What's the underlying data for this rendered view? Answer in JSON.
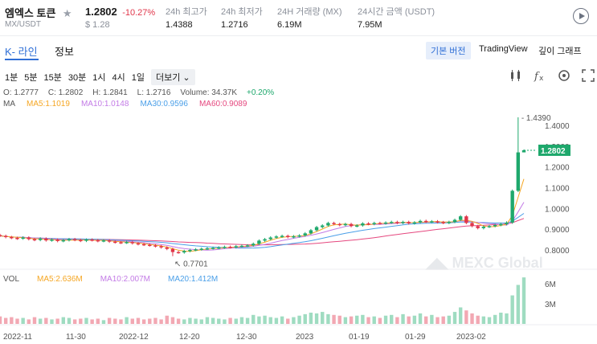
{
  "header": {
    "name": "엠엑스 토큰",
    "pair": "MX/USDT",
    "price": "1.2802",
    "change": "-10.27%",
    "usd_price": "$ 1.28",
    "stats": [
      {
        "label": "24h 최고가",
        "value": "1.4388"
      },
      {
        "label": "24h 최저가",
        "value": "1.2716"
      },
      {
        "label": "24H 거래량 (MX)",
        "value": "6.19M"
      },
      {
        "label": "24시간 금액 (USDT)",
        "value": "7.95M"
      }
    ]
  },
  "tabs": [
    {
      "label": "K- 라인"
    },
    {
      "label": "정보"
    }
  ],
  "views": [
    {
      "label": "기본 버전"
    },
    {
      "label": "TradingView"
    },
    {
      "label": "깊이 그래프"
    }
  ],
  "intervals": [
    "1분",
    "5분",
    "15분",
    "30분",
    "1시",
    "4시",
    "1일"
  ],
  "more_label": "더보기",
  "ohlc": {
    "o": "O: 1.2777",
    "c": "C: 1.2802",
    "h": "H: 1.2841",
    "l": "L: 1.2716",
    "volume": "Volume: 34.37K",
    "pct": "+0.20%"
  },
  "ma": {
    "label": "MA",
    "ma5": "MA5:1.1019",
    "ma10": "MA10:1.0148",
    "ma30": "MA30:0.9596",
    "ma60": "MA60:0.9089"
  },
  "vol": {
    "label": "VOL",
    "ma5": "MA5:2.636M",
    "ma10": "MA10:2.007M",
    "ma20": "MA20:1.412M"
  },
  "watermark": "MEXC Global",
  "colors": {
    "up": "#1ea86c",
    "down": "#e0364a",
    "accent": "#2f6fd6",
    "ma5": "#f5a623",
    "ma10": "#c37be6",
    "ma30": "#4a9fe8",
    "ma60": "#e5487f"
  },
  "chart_data": {
    "type": "candlestick",
    "y_ticks": [
      "1.4000",
      "1.3000",
      "1.2000",
      "1.1000",
      "1.0000",
      "0.9000",
      "0.8000"
    ],
    "vol_ticks": [
      "6M",
      "3M"
    ],
    "x_ticks": [
      "2022-11",
      "11-30",
      "2022-12",
      "12-20",
      "12-30",
      "2023",
      "01-19",
      "01-29",
      "2023-02"
    ],
    "high_label": "1.4390",
    "low_label": "0.7701",
    "last_price": "1.2802",
    "closes": [
      0.868,
      0.862,
      0.858,
      0.855,
      0.86,
      0.852,
      0.848,
      0.855,
      0.846,
      0.85,
      0.843,
      0.847,
      0.852,
      0.848,
      0.844,
      0.85,
      0.847,
      0.843,
      0.846,
      0.84,
      0.837,
      0.835,
      0.838,
      0.832,
      0.828,
      0.825,
      0.822,
      0.818,
      0.812,
      0.805,
      0.79,
      0.788,
      0.795,
      0.8,
      0.803,
      0.806,
      0.808,
      0.81,
      0.812,
      0.815,
      0.813,
      0.818,
      0.82,
      0.822,
      0.83,
      0.845,
      0.852,
      0.86,
      0.865,
      0.868,
      0.862,
      0.866,
      0.87,
      0.88,
      0.895,
      0.91,
      0.918,
      0.93,
      0.925,
      0.92,
      0.925,
      0.915,
      0.918,
      0.928,
      0.925,
      0.93,
      0.928,
      0.932,
      0.935,
      0.93,
      0.935,
      0.928,
      0.933,
      0.94,
      0.936,
      0.938,
      0.934,
      0.93,
      0.935,
      0.945,
      0.962,
      0.93,
      0.915,
      0.905,
      0.912,
      0.915,
      0.92,
      0.925,
      0.932,
      1.085,
      1.27,
      1.2802
    ],
    "volumes": [
      1.0,
      0.8,
      0.9,
      0.7,
      0.8,
      0.6,
      0.9,
      0.7,
      0.8,
      0.6,
      0.7,
      0.9,
      0.8,
      0.6,
      0.7,
      0.8,
      0.6,
      0.7,
      0.5,
      0.8,
      0.7,
      0.6,
      0.9,
      0.7,
      0.8,
      0.6,
      0.7,
      0.8,
      0.6,
      1.1,
      0.9,
      0.7,
      0.6,
      0.8,
      0.7,
      0.6,
      0.9,
      0.8,
      0.7,
      0.6,
      0.8,
      0.7,
      0.9,
      0.8,
      1.2,
      1.0,
      1.1,
      0.9,
      0.8,
      1.0,
      0.7,
      0.9,
      1.1,
      1.3,
      1.5,
      1.4,
      1.6,
      1.3,
      1.2,
      1.1,
      0.9,
      1.0,
      1.1,
      1.2,
      0.9,
      1.0,
      0.8,
      1.1,
      1.2,
      0.9,
      1.3,
      1.0,
      1.1,
      1.4,
      1.0,
      1.2,
      0.9,
      1.0,
      1.1,
      1.6,
      2.2,
      1.8,
      1.4,
      1.1,
      1.0,
      0.9,
      1.2,
      1.5,
      1.4,
      3.8,
      5.2,
      6.2
    ]
  }
}
